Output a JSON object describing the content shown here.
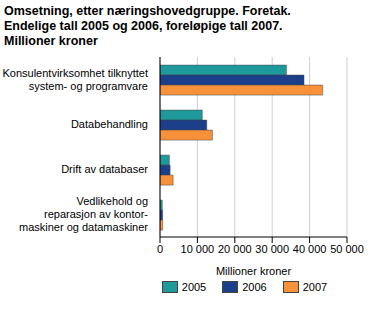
{
  "chart_data": {
    "type": "bar",
    "orientation": "horizontal",
    "title": "Omsetning, etter næringshovedgruppe. Foretak.\nEndelige tall 2005 og 2006, foreløpige tall 2007.\nMillioner kroner",
    "x_label": "Millioner kroner",
    "categories": [
      "Konsulentvirksomhet tilknyttet\nsystem- og programvare",
      "Databehandling",
      "Drift av databaser",
      "Vedlikehold og\nreparasjon av kontor-\nmaskiner og datamaskiner"
    ],
    "series": [
      {
        "name": "2005",
        "color": "#1f9a9c",
        "values": [
          33800,
          11300,
          2500,
          600
        ]
      },
      {
        "name": "2006",
        "color": "#1c3f8c",
        "values": [
          38500,
          12500,
          2700,
          700
        ]
      },
      {
        "name": "2007",
        "color": "#f7923a",
        "values": [
          43500,
          14000,
          3500,
          700
        ]
      }
    ],
    "xlim": [
      0,
      50000
    ],
    "xticks": [
      0,
      {
        "value": 10000,
        "label": "10 000"
      },
      {
        "value": 20000,
        "label": "20 000"
      },
      {
        "value": 30000,
        "label": "30 000"
      },
      {
        "value": 40000,
        "label": "40 000"
      },
      {
        "value": 50000,
        "label": "50 000"
      }
    ],
    "grid": true,
    "legend": "bottom"
  }
}
